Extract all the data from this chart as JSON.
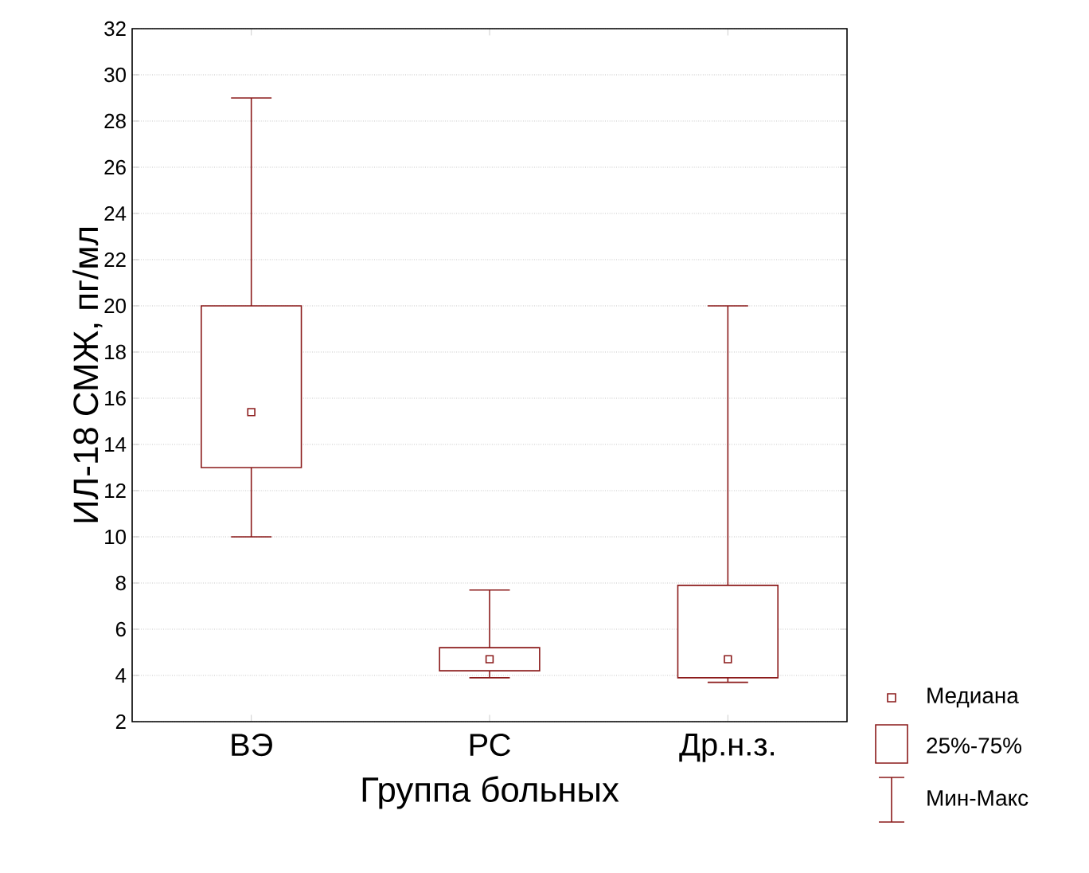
{
  "chart_data": {
    "type": "box",
    "xlabel": "Группа больных",
    "ylabel": "ИЛ-18 СМЖ, пг/мл",
    "categories": [
      "ВЭ",
      "РС",
      "Др.н.з."
    ],
    "boxes": [
      {
        "low": 10,
        "q1": 13,
        "median": 15.4,
        "q3": 20,
        "high": 29
      },
      {
        "low": 3.9,
        "q1": 4.2,
        "median": 4.7,
        "q3": 5.2,
        "high": 7.7
      },
      {
        "low": 3.7,
        "q1": 3.9,
        "median": 4.7,
        "q3": 7.9,
        "high": 20
      }
    ],
    "color": "#8b1a1a",
    "ylim": [
      2,
      32
    ],
    "yticks": [
      2,
      4,
      6,
      8,
      10,
      12,
      14,
      16,
      18,
      20,
      22,
      24,
      26,
      28,
      30,
      32
    ],
    "grid": "y",
    "marker": "square",
    "annotations": [
      "Медиана",
      "25%-75%",
      "Мин-Макс"
    ]
  }
}
